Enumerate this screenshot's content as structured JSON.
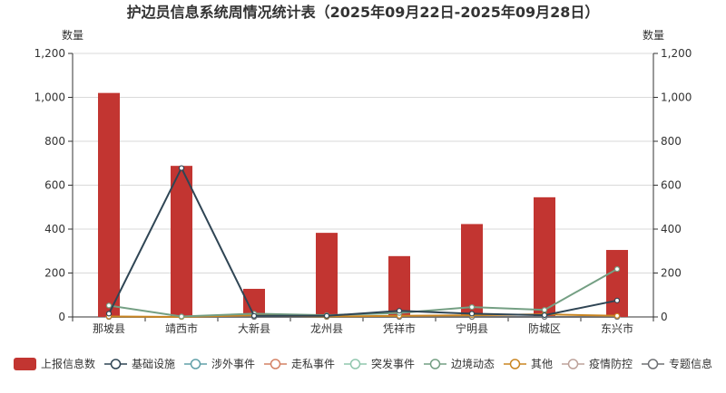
{
  "chart_data": {
    "type": "bar",
    "title": "护边员信息系统周情况统计表（2025年09月22日-2025年09月28日）",
    "ylabel_left": "数量",
    "ylabel_right": "数量",
    "ylim": [
      0,
      1200
    ],
    "yticks": [
      0,
      200,
      400,
      600,
      800,
      1000,
      1200
    ],
    "ytick_labels": [
      "0",
      "200",
      "400",
      "600",
      "800",
      "1,000",
      "1,200"
    ],
    "grid": true,
    "legend_position": "bottom",
    "categories": [
      "那坡县",
      "靖西市",
      "大新县",
      "龙州县",
      "凭祥市",
      "宁明县",
      "防城区",
      "东兴市"
    ],
    "series": [
      {
        "name": "上报信息数",
        "kind": "bar",
        "color": "#c23531",
        "values": [
          1020,
          688,
          128,
          383,
          277,
          423,
          545,
          305
        ]
      },
      {
        "name": "基础设施",
        "kind": "line",
        "color": "#2f4554",
        "values": [
          15,
          678,
          5,
          5,
          28,
          15,
          8,
          75
        ]
      },
      {
        "name": "涉外事件",
        "kind": "line",
        "color": "#61a0a8",
        "values": [
          0,
          0,
          0,
          0,
          0,
          0,
          0,
          0
        ]
      },
      {
        "name": "走私事件",
        "kind": "line",
        "color": "#d48265",
        "values": [
          0,
          0,
          0,
          0,
          0,
          0,
          0,
          0
        ]
      },
      {
        "name": "突发事件",
        "kind": "line",
        "color": "#91c7ae",
        "values": [
          0,
          0,
          0,
          0,
          0,
          0,
          0,
          0
        ]
      },
      {
        "name": "边境动态",
        "kind": "line",
        "color": "#749f83",
        "values": [
          52,
          2,
          15,
          8,
          18,
          45,
          32,
          218
        ]
      },
      {
        "name": "其他",
        "kind": "line",
        "color": "#ca8622",
        "values": [
          2,
          0,
          8,
          2,
          5,
          8,
          12,
          5
        ]
      },
      {
        "name": "疫情防控",
        "kind": "line",
        "color": "#bda29a",
        "values": [
          0,
          0,
          0,
          0,
          0,
          0,
          0,
          0
        ]
      },
      {
        "name": "专题信息",
        "kind": "line",
        "color": "#6e7074",
        "values": [
          0,
          0,
          0,
          0,
          0,
          0,
          0,
          0
        ]
      }
    ]
  }
}
